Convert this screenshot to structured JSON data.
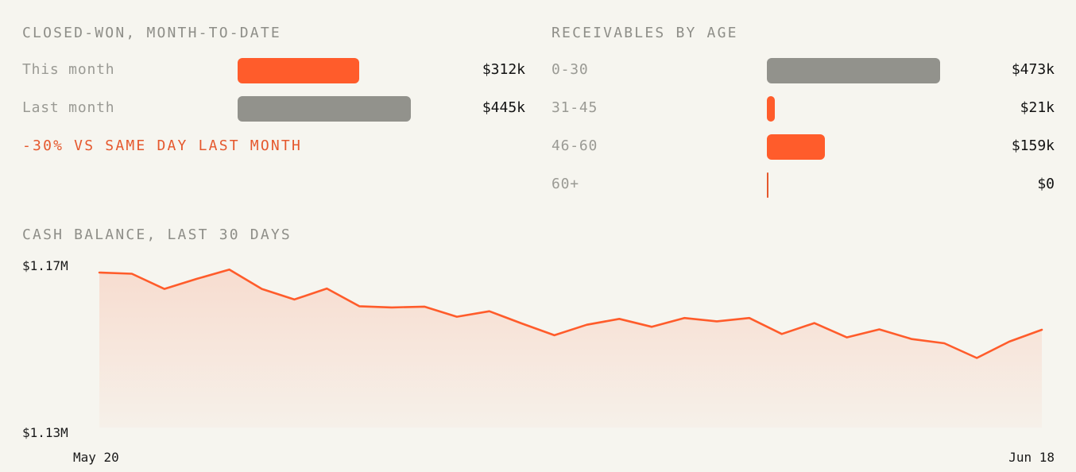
{
  "closed_won": {
    "title": "CLOSED-WON, MONTH-TO-DATE",
    "rows": [
      {
        "label": "This month",
        "value": 312,
        "value_label": "$312k",
        "color": "#ff5c2b"
      },
      {
        "label": "Last month",
        "value": 445,
        "value_label": "$445k",
        "color": "#92928c"
      }
    ],
    "delta": "-30% VS SAME DAY LAST MONTH",
    "delta_color": "#e5582d"
  },
  "receivables": {
    "title": "RECEIVABLES BY AGE",
    "rows": [
      {
        "label": "0-30",
        "value": 473,
        "value_label": "$473k",
        "color": "#92928c"
      },
      {
        "label": "31-45",
        "value": 21,
        "value_label": "$21k",
        "color": "#ff5c2b"
      },
      {
        "label": "46-60",
        "value": 159,
        "value_label": "$159k",
        "color": "#ff5c2b"
      },
      {
        "label": "60+",
        "value": 0,
        "value_label": "$0",
        "color": "#e5582d"
      }
    ]
  },
  "cash": {
    "title": "CASH BALANCE, LAST 30 DAYS",
    "y_max_label": "$1.17M",
    "y_min_label": "$1.13M",
    "x_start_label": "May 20",
    "x_end_label": "Jun 18",
    "line_color": "#ff5c2b"
  },
  "chart_data": [
    {
      "type": "bar",
      "title": "CLOSED-WON, MONTH-TO-DATE",
      "categories": [
        "This month",
        "Last month"
      ],
      "values": [
        312,
        445
      ],
      "unit": "$k"
    },
    {
      "type": "bar",
      "title": "RECEIVABLES BY AGE",
      "categories": [
        "0-30",
        "31-45",
        "46-60",
        "60+"
      ],
      "values": [
        473,
        21,
        159,
        0
      ],
      "unit": "$k"
    },
    {
      "type": "area",
      "title": "CASH BALANCE, LAST 30 DAYS",
      "x_range": [
        "May 20",
        "Jun 18"
      ],
      "ylim": [
        1.13,
        1.17
      ],
      "unit": "$M",
      "values": [
        1.1668,
        1.1665,
        1.1629,
        1.1653,
        1.1675,
        1.1629,
        1.1604,
        1.163,
        1.1588,
        1.1585,
        1.1587,
        1.1563,
        1.1576,
        1.1547,
        1.1519,
        1.1544,
        1.1558,
        1.1539,
        1.156,
        1.1552,
        1.156,
        1.1522,
        1.1548,
        1.1514,
        1.1533,
        1.151,
        1.15,
        1.1465,
        1.1504,
        1.1532
      ]
    }
  ]
}
